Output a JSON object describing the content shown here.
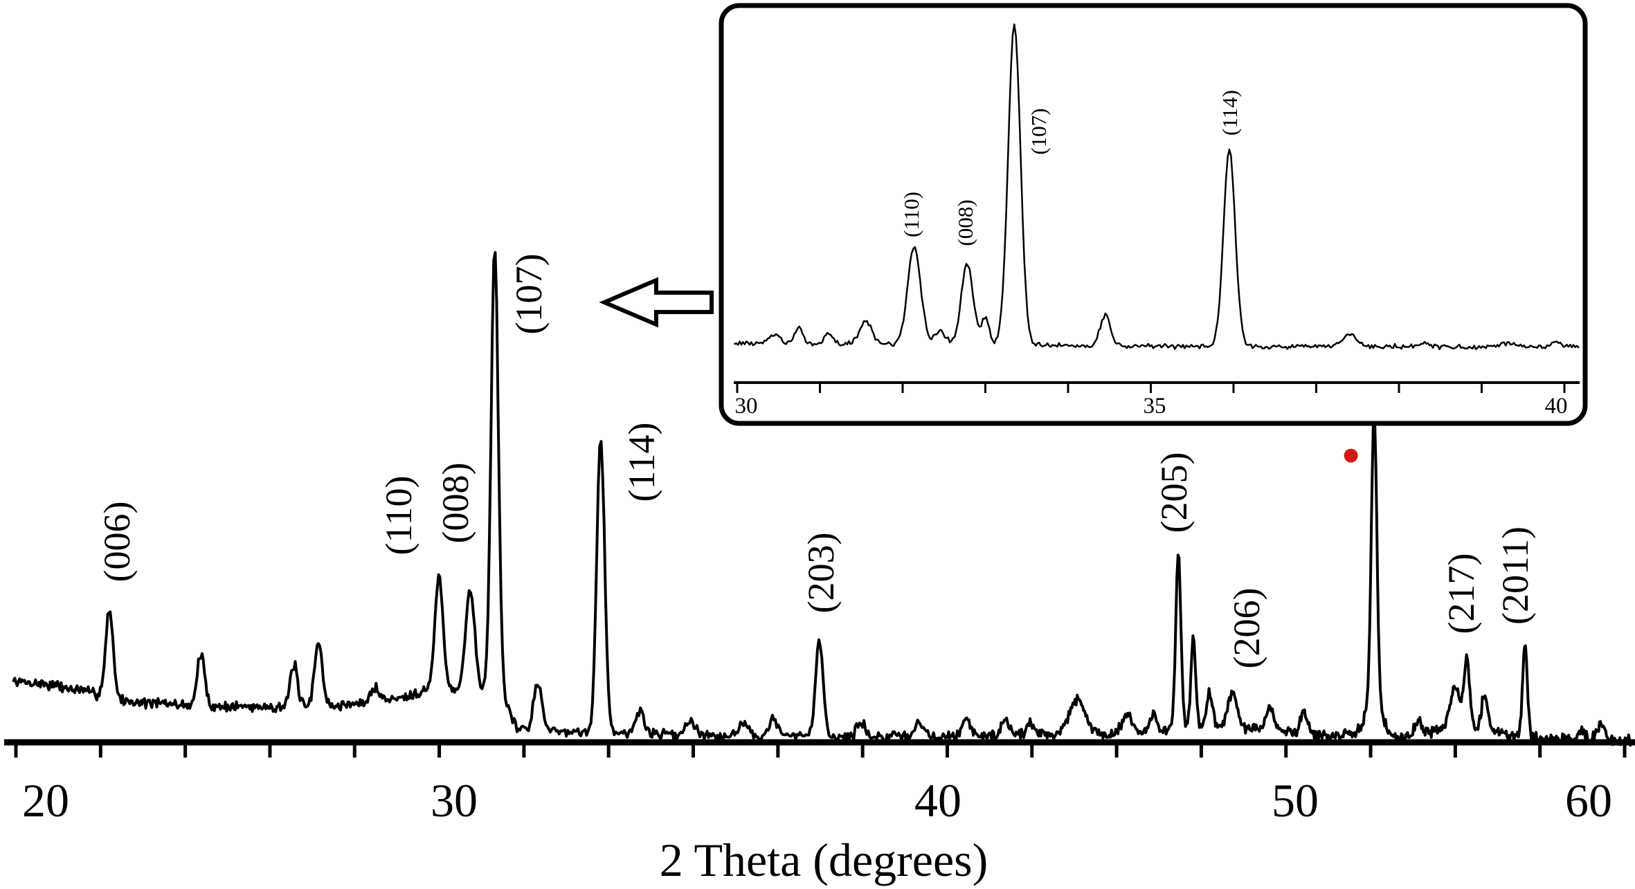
{
  "chart_data": {
    "type": "line",
    "title": null,
    "main": {
      "xlabel": "2 Theta (degrees)",
      "x_axis_ticks": [
        20,
        30,
        40,
        50,
        60
      ],
      "x_tick_labels": [
        "20",
        "30",
        "40",
        "50",
        "60"
      ],
      "x_range": [
        19.21,
        61.55
      ],
      "y_axis_visible": false,
      "intensity_scale": "arbitrary units, 0-100, 100 = apex of (107) peak",
      "trace_color": "#000000",
      "sample_step": 0.03,
      "noise_amplitude": 1.3,
      "peaks": [
        {
          "two_theta": 21.56,
          "intensity": 27,
          "sigma": 0.13,
          "hkl": "(006)"
        },
        {
          "two_theta": 23.8,
          "intensity": 18,
          "sigma": 0.13,
          "hkl": null
        },
        {
          "two_theta": 26.08,
          "intensity": 16,
          "sigma": 0.12,
          "hkl": null
        },
        {
          "two_theta": 26.68,
          "intensity": 21,
          "sigma": 0.13,
          "hkl": null
        },
        {
          "two_theta": 28.08,
          "intensity": 11.5,
          "sigma": 0.13,
          "hkl": null
        },
        {
          "two_theta": 29.63,
          "intensity": 33.5,
          "sigma": 0.14,
          "hkl": "(110)"
        },
        {
          "two_theta": 30.33,
          "intensity": 31,
          "sigma": 0.13,
          "hkl": "(008)"
        },
        {
          "two_theta": 30.84,
          "intensity": 100,
          "sigma": 0.105,
          "hkl": "(107)"
        },
        {
          "two_theta": 31.73,
          "intensity": 12.5,
          "sigma": 0.12,
          "hkl": null
        },
        {
          "two_theta": 33.03,
          "intensity": 62,
          "sigma": 0.115,
          "hkl": "(114)"
        },
        {
          "two_theta": 33.85,
          "intensity": 6.5,
          "sigma": 0.12,
          "hkl": null
        },
        {
          "two_theta": 34.9,
          "intensity": 4.5,
          "sigma": 0.15,
          "hkl": null
        },
        {
          "two_theta": 36.0,
          "intensity": 4,
          "sigma": 0.15,
          "hkl": null
        },
        {
          "two_theta": 36.6,
          "intensity": 5,
          "sigma": 0.12,
          "hkl": null
        },
        {
          "two_theta": 37.55,
          "intensity": 21,
          "sigma": 0.11,
          "hkl": "(203)"
        },
        {
          "two_theta": 38.4,
          "intensity": 4.5,
          "sigma": 0.12,
          "hkl": null
        },
        {
          "two_theta": 39.6,
          "intensity": 4,
          "sigma": 0.15,
          "hkl": null
        },
        {
          "two_theta": 40.8,
          "intensity": 5.5,
          "sigma": 0.15,
          "hkl": null
        },
        {
          "two_theta": 41.9,
          "intensity": 5,
          "sigma": 0.15,
          "hkl": null
        },
        {
          "two_theta": 42.6,
          "intensity": 4.5,
          "sigma": 0.12,
          "hkl": null
        },
        {
          "two_theta": 43.9,
          "intensity": 9,
          "sigma": 0.3,
          "hkl": null
        },
        {
          "two_theta": 45.3,
          "intensity": 6,
          "sigma": 0.2,
          "hkl": null
        },
        {
          "two_theta": 46.05,
          "intensity": 6,
          "sigma": 0.12,
          "hkl": null
        },
        {
          "two_theta": 46.73,
          "intensity": 38.5,
          "sigma": 0.1,
          "hkl": "(205)"
        },
        {
          "two_theta": 47.15,
          "intensity": 22,
          "sigma": 0.09,
          "hkl": null
        },
        {
          "two_theta": 47.6,
          "intensity": 10,
          "sigma": 0.12,
          "hkl": null
        },
        {
          "two_theta": 48.25,
          "intensity": 10.5,
          "sigma": 0.18,
          "hkl": "(206)"
        },
        {
          "two_theta": 49.3,
          "intensity": 7.5,
          "sigma": 0.15,
          "hkl": null
        },
        {
          "two_theta": 50.3,
          "intensity": 6.5,
          "sigma": 0.18,
          "hkl": null
        },
        {
          "two_theta": 52.69,
          "intensity": 60,
          "sigma": 0.13,
          "hkl": null
        },
        {
          "two_theta": 52.69,
          "intensity": 9,
          "sigma": 0.38,
          "hkl": null
        },
        {
          "two_theta": 54.2,
          "intensity": 5,
          "sigma": 0.15,
          "hkl": null
        },
        {
          "two_theta": 55.45,
          "intensity": 11,
          "sigma": 0.25,
          "hkl": null
        },
        {
          "two_theta": 55.85,
          "intensity": 17,
          "sigma": 0.13,
          "hkl": "(217)"
        },
        {
          "two_theta": 56.46,
          "intensity": 10,
          "sigma": 0.15,
          "hkl": null
        },
        {
          "two_theta": 57.83,
          "intensity": 20.5,
          "sigma": 0.11,
          "hkl": "(2011)"
        },
        {
          "two_theta": 59.77,
          "intensity": 3,
          "sigma": 0.15,
          "hkl": null
        },
        {
          "two_theta": 60.4,
          "intensity": 3.5,
          "sigma": 0.2,
          "hkl": null
        }
      ],
      "baseline": [
        [
          19.21,
          12.5
        ],
        [
          20,
          12
        ],
        [
          21,
          10.5
        ],
        [
          22,
          8.5
        ],
        [
          23,
          8
        ],
        [
          24,
          7.5
        ],
        [
          25.5,
          7.5
        ],
        [
          27,
          7.5
        ],
        [
          28.5,
          9
        ],
        [
          29.4,
          11
        ],
        [
          30.9,
          11
        ],
        [
          31.3,
          3
        ],
        [
          32.3,
          2.5
        ],
        [
          33.5,
          2.2
        ],
        [
          35,
          1.8
        ],
        [
          37,
          1.5
        ],
        [
          39,
          1.3
        ],
        [
          41,
          1.6
        ],
        [
          43,
          2
        ],
        [
          45,
          2
        ],
        [
          46.5,
          3
        ],
        [
          48,
          3.5
        ],
        [
          49.5,
          2.5
        ],
        [
          51,
          1.5
        ],
        [
          52.5,
          2
        ],
        [
          53.5,
          1.2
        ],
        [
          55,
          2.8
        ],
        [
          56.3,
          3
        ],
        [
          57.3,
          1.8
        ],
        [
          58.5,
          1
        ],
        [
          60,
          0.8
        ],
        [
          61.55,
          0.5
        ]
      ],
      "marker_dot": {
        "two_theta": 51.9,
        "intensity": 58,
        "color": "#d31717"
      }
    },
    "inset": {
      "x_axis_ticks": [
        30,
        35,
        40
      ],
      "x_tick_labels": [
        "30",
        "35",
        "40"
      ],
      "x_range": [
        29.97,
        40.17
      ],
      "minor_tick_interval": 1,
      "trace_color": "#000000",
      "sample_step": 0.02,
      "noise_amplitude": 0.9,
      "peaks": [
        {
          "two_theta": 30.45,
          "intensity": 5.5,
          "sigma": 0.08,
          "hkl": null
        },
        {
          "two_theta": 30.75,
          "intensity": 7,
          "sigma": 0.07,
          "hkl": null
        },
        {
          "two_theta": 31.1,
          "intensity": 5.5,
          "sigma": 0.07,
          "hkl": null
        },
        {
          "two_theta": 31.55,
          "intensity": 9.5,
          "sigma": 0.1,
          "hkl": null
        },
        {
          "two_theta": 32.14,
          "intensity": 32,
          "sigma": 0.11,
          "hkl": "(110)"
        },
        {
          "two_theta": 32.45,
          "intensity": 6,
          "sigma": 0.1,
          "hkl": null
        },
        {
          "two_theta": 32.78,
          "intensity": 27,
          "sigma": 0.1,
          "hkl": "(008)"
        },
        {
          "two_theta": 33.0,
          "intensity": 10,
          "sigma": 0.07,
          "hkl": null
        },
        {
          "two_theta": 33.35,
          "intensity": 100,
          "sigma": 0.105,
          "hkl": "(107)"
        },
        {
          "two_theta": 34.45,
          "intensity": 11,
          "sigma": 0.09,
          "hkl": null
        },
        {
          "two_theta": 35.95,
          "intensity": 62,
          "sigma": 0.1,
          "hkl": "(114)"
        },
        {
          "two_theta": 37.4,
          "intensity": 5,
          "sigma": 0.12,
          "hkl": null
        },
        {
          "two_theta": 38.3,
          "intensity": 2.5,
          "sigma": 0.1,
          "hkl": null
        },
        {
          "two_theta": 39.3,
          "intensity": 2.5,
          "sigma": 0.1,
          "hkl": null
        },
        {
          "two_theta": 39.9,
          "intensity": 3,
          "sigma": 0.08,
          "hkl": null
        }
      ],
      "baseline": [
        [
          29.97,
          2.6
        ],
        [
          31,
          2.3
        ],
        [
          32,
          2.3
        ],
        [
          33,
          2
        ],
        [
          34,
          1.8
        ],
        [
          35,
          1.6
        ],
        [
          36,
          1.5
        ],
        [
          37,
          1.4
        ],
        [
          38,
          1.5
        ],
        [
          39,
          1.2
        ],
        [
          40.17,
          1.7
        ]
      ]
    }
  },
  "colors": {
    "trace": "#000000",
    "axis": "#000000",
    "background": "#ffffff",
    "marker_dot": "#d31717"
  }
}
